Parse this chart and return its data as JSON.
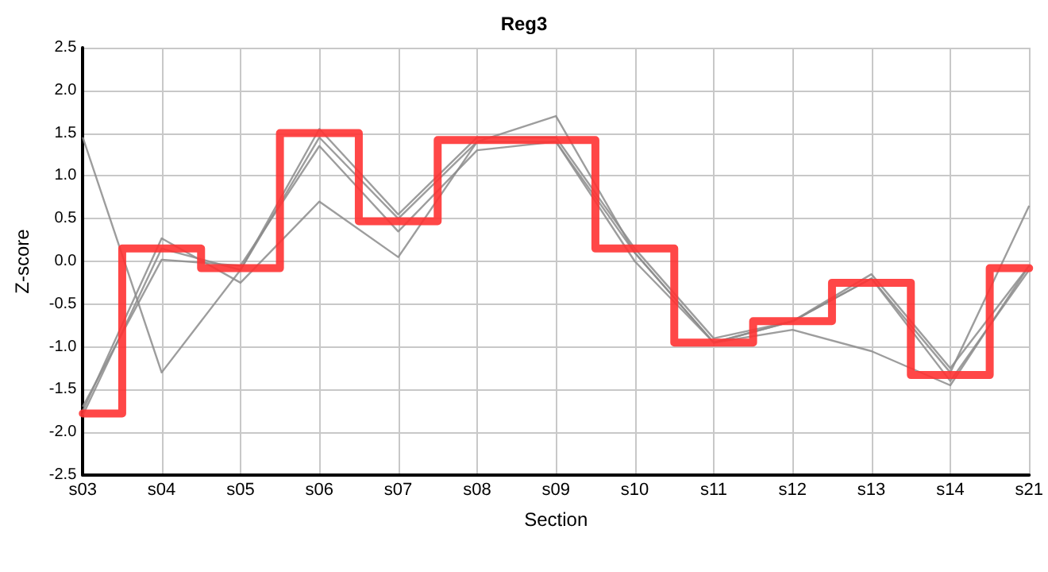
{
  "chart_data": {
    "type": "line",
    "title": "Reg3",
    "xlabel": "Section",
    "ylabel": "Z-score",
    "categories": [
      "s03",
      "s04",
      "s05",
      "s06",
      "s07",
      "s08",
      "s09",
      "s10",
      "s11",
      "s12",
      "s13",
      "s14",
      "s21"
    ],
    "ylim": [
      -2.5,
      2.5
    ],
    "yticks": [
      {
        "value": -2.5,
        "label": "-2.5"
      },
      {
        "value": -2,
        "label": "-2.0"
      },
      {
        "value": -1.5,
        "label": "-1.5"
      },
      {
        "value": -1,
        "label": "-1.0"
      },
      {
        "value": -0.5,
        "label": "-0.5"
      },
      {
        "value": 0,
        "label": "0.0"
      },
      {
        "value": 0.5,
        "label": "0.5"
      },
      {
        "value": 1,
        "label": "1.0"
      },
      {
        "value": 1.5,
        "label": "1.5"
      },
      {
        "value": 2,
        "label": "2.0"
      },
      {
        "value": 2.5,
        "label": "2.5"
      }
    ],
    "grid": true,
    "marker": "none",
    "line_style": "solid",
    "series": [
      {
        "color": "#8c8c8c",
        "values": [
          1.45,
          -1.3,
          -0.1,
          1.45,
          0.5,
          1.4,
          1.4,
          0.1,
          -0.95,
          -0.7,
          -0.2,
          -1.3,
          0.65
        ]
      },
      {
        "color": "#8c8c8c",
        "values": [
          -1.75,
          0.27,
          -0.25,
          0.7,
          0.05,
          1.4,
          1.7,
          0.1,
          -0.95,
          -0.8,
          -1.05,
          -1.45,
          -0.05
        ]
      },
      {
        "color": "#8c8c8c",
        "values": [
          -1.7,
          0.02,
          -0.05,
          1.35,
          0.35,
          1.3,
          1.4,
          0.0,
          -0.95,
          -0.7,
          -0.2,
          -1.4,
          -0.1
        ]
      },
      {
        "color": "#8c8c8c",
        "values": [
          -1.8,
          0.15,
          -0.1,
          1.55,
          0.55,
          1.45,
          1.45,
          0.15,
          -0.9,
          -0.7,
          -0.15,
          -1.25,
          -0.05
        ]
      },
      {
        "type": "step",
        "color": "#ff3333",
        "values": [
          -1.78,
          0.15,
          -0.08,
          1.5,
          0.47,
          1.42,
          1.42,
          0.15,
          -0.95,
          -0.7,
          -0.25,
          -1.33,
          -0.08
        ]
      }
    ]
  }
}
